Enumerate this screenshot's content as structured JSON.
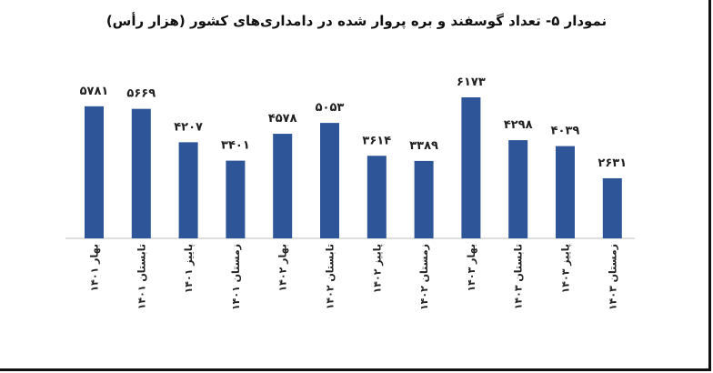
{
  "chart_data": {
    "type": "bar",
    "title": "نمودار ۵- تعداد گوسفند و بره پروار شده در دامداری‌های کشور (هزار رأس)",
    "categories": [
      "بهار ۱۴۰۱",
      "تابستان ۱۴۰۱",
      "پاییز ۱۴۰۱",
      "زمستان ۱۴۰۱",
      "بهار ۱۴۰۲",
      "تابستان ۱۴۰۲",
      "پاییز ۱۴۰۲",
      "زمستان ۱۴۰۲",
      "بهار ۱۴۰۳",
      "تابستان ۱۴۰۳",
      "پاییز ۱۴۰۳",
      "زمستان ۱۴۰۳"
    ],
    "values": [
      5781,
      5669,
      4207,
      3401,
      4578,
      5053,
      3614,
      3389,
      6173,
      4298,
      4039,
      2631
    ],
    "value_labels": [
      "۵۷۸۱",
      "۵۶۶۹",
      "۴۲۰۷",
      "۳۴۰۱",
      "۴۵۷۸",
      "۵۰۵۳",
      "۳۶۱۴",
      "۳۳۸۹",
      "۶۱۷۳",
      "۴۲۹۸",
      "۴۰۳۹",
      "۲۶۳۱"
    ],
    "bar_color": "#2E5597",
    "xlabel": "",
    "ylabel": "",
    "grid": false,
    "legend": "none"
  }
}
